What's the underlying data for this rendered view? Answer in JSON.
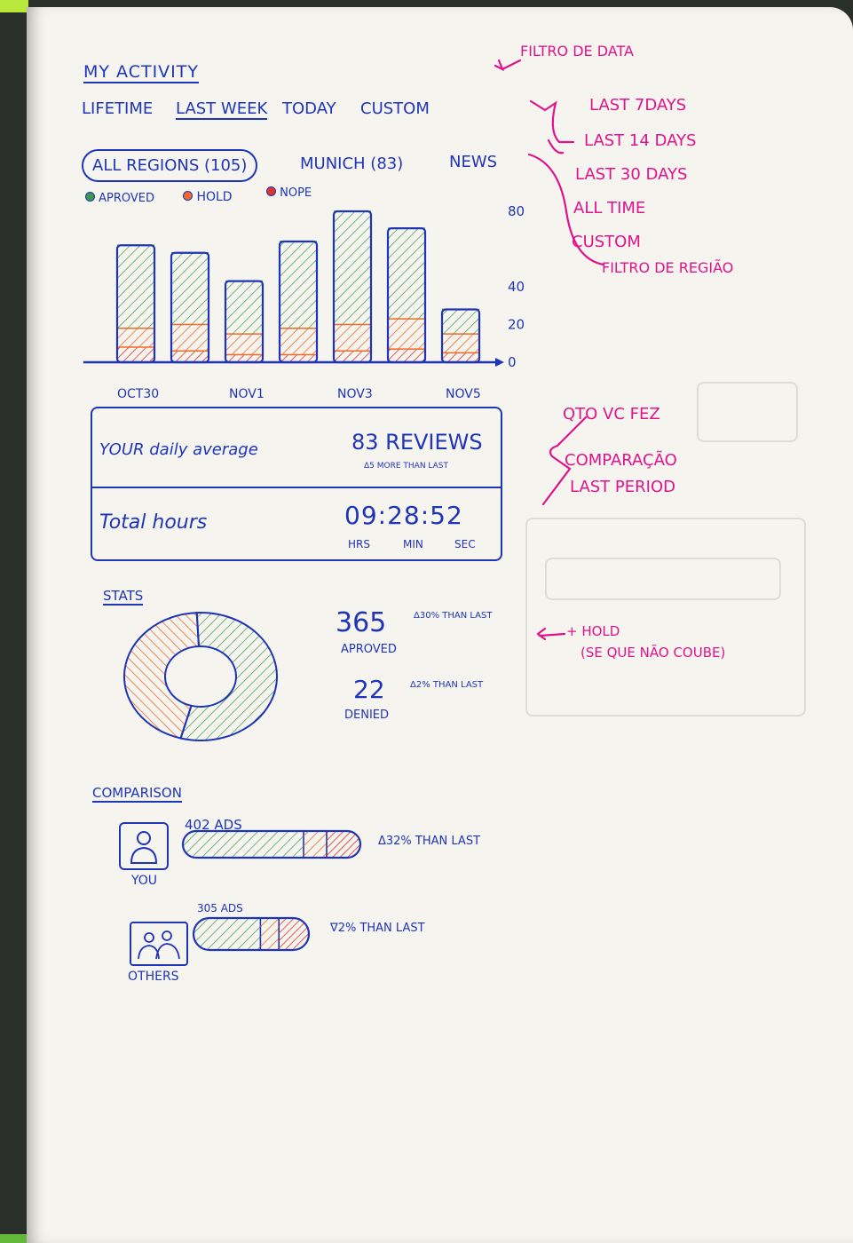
{
  "header": {
    "title": "MY ACTIVITY"
  },
  "time_filters": [
    "LIFETIME",
    "LAST WEEK",
    "TODAY",
    "CUSTOM"
  ],
  "region_filters": [
    "ALL REGIONS (105)",
    "MUNICH (83)",
    "NEWS"
  ],
  "legend": [
    "APROVED",
    "HOLD",
    "NOPE"
  ],
  "colors": {
    "ink": "#1f35b8",
    "approved": "#3a9a4a",
    "hold": "#f06a2a",
    "denied": "#e0342a",
    "annotation": "#e0138c"
  },
  "chart_data": {
    "type": "bar",
    "stacked": true,
    "categories": [
      "",
      "",
      "",
      "",
      "",
      "",
      ""
    ],
    "tick_labels": [
      "OCT30",
      "NOV1",
      "NOV3",
      "NOV5"
    ],
    "series": [
      {
        "name": "APROVED",
        "values": [
          44,
          38,
          28,
          46,
          60,
          48,
          13
        ]
      },
      {
        "name": "HOLD",
        "values": [
          10,
          14,
          11,
          14,
          14,
          16,
          10
        ]
      },
      {
        "name": "NOPE",
        "values": [
          8,
          6,
          4,
          4,
          6,
          7,
          5
        ]
      }
    ],
    "y_ticks": [
      "0",
      "20",
      "40",
      "80"
    ],
    "ylim": [
      0,
      80
    ]
  },
  "daily_average": {
    "label": "YOUR daily average",
    "value": "83 REVIEWS",
    "delta": "Δ5 MORE THAN LAST",
    "hours_label": "Total hours",
    "time": "09:28:52",
    "units": [
      "HRS",
      "MIN",
      "SEC"
    ]
  },
  "stats": {
    "title": "STATS",
    "approved_value": "365",
    "approved_delta": "Δ30% THAN LAST",
    "approved_label": "APROVED",
    "denied_value": "22",
    "denied_delta": "Δ2% THAN LAST",
    "denied_label": "DENIED",
    "donut": {
      "approved_fraction": 0.55,
      "denied_fraction": 0.45
    }
  },
  "comparison": {
    "title": "COMPARISON",
    "you": {
      "ads": "402 ADS",
      "label": "YOU",
      "delta": "Δ32% THAN LAST"
    },
    "others": {
      "ads": "305 ADS",
      "label": "OTHERS",
      "delta": "∇2% THAN LAST"
    }
  },
  "annotations": {
    "date_filter": "FILTRO DE DATA",
    "date_options": [
      "LAST 7DAYS",
      "LAST 14 DAYS",
      "LAST 30 DAYS",
      "ALL TIME",
      "CUSTOM"
    ],
    "region_filter": "FILTRO DE REGIÃO",
    "qty_note": [
      "QTO VC FEZ",
      "COMPARAÇÃO",
      "LAST PERIOD"
    ],
    "hold_note": [
      "+ HOLD",
      "(SE QUE NÃO COUBE)"
    ]
  }
}
